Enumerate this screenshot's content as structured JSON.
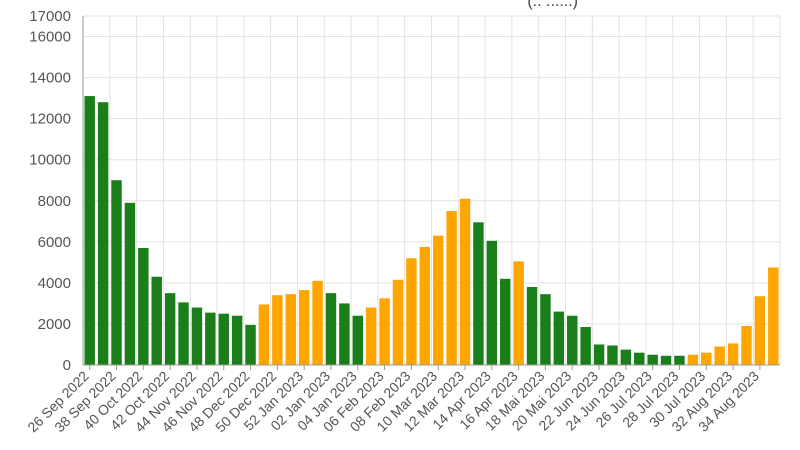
{
  "chart_data": {
    "type": "bar",
    "title": "(.. ......)",
    "xlabel": "",
    "ylabel": "",
    "ylim": [
      0,
      17000
    ],
    "y_ticks": [
      0,
      2000,
      4000,
      6000,
      8000,
      10000,
      12000,
      14000,
      16000,
      17000
    ],
    "grid": true,
    "legend": "none",
    "colors": {
      "decreasing": "#1a7f1a",
      "increasing": "#ffa500",
      "grid": "#e3e3e3",
      "axis": "#999999"
    },
    "categories": [
      "26 Sep 2022",
      "",
      "38 Sep 2022",
      "",
      "40 Oct 2022",
      "",
      "42 Oct 2022",
      "",
      "44 Nov 2022",
      "",
      "46 Nov 2022",
      "",
      "48 Dec 2022",
      "",
      "50 Dec 2022",
      "",
      "52 Jan 2023",
      "",
      "02 Jan 2023",
      "",
      "04 Jan 2023",
      "",
      "06 Feb 2023",
      "",
      "08 Feb 2023",
      "",
      "10 Mar 2023",
      "",
      "12 Mar 2023",
      "",
      "14 Apr 2023",
      "",
      "16 Apr 2023",
      "",
      "18 Mai 2023",
      "",
      "20 Mai 2023",
      "",
      "22 Jun 2023",
      "",
      "24 Jun 2023",
      "",
      "26 Jul 2023",
      "",
      "28 Jul 2023",
      "",
      "30 Jul 2023",
      "",
      "32 Aug 2023",
      "",
      "34 Aug 2023",
      ""
    ],
    "series": [
      {
        "values": [
          13100,
          12800,
          9000,
          7900,
          5700,
          4300,
          3500,
          3050,
          2800,
          2550,
          2500,
          2400,
          1950,
          2950,
          3400,
          3450,
          3650,
          4100,
          3500,
          3000,
          2400,
          2800,
          3250,
          4150,
          5200,
          5750,
          6300,
          7500,
          8100,
          6950,
          6050,
          4200,
          5050,
          3800,
          3450,
          2600,
          2400,
          1850,
          1000,
          950,
          750,
          600,
          500,
          450,
          450,
          500,
          600,
          900,
          1050,
          1900,
          3350,
          4750
        ],
        "trend": [
          "down",
          "down",
          "down",
          "down",
          "down",
          "down",
          "down",
          "down",
          "down",
          "down",
          "down",
          "down",
          "down",
          "up",
          "up",
          "up",
          "up",
          "up",
          "down",
          "down",
          "down",
          "up",
          "up",
          "up",
          "up",
          "up",
          "up",
          "up",
          "up",
          "down",
          "down",
          "down",
          "up",
          "down",
          "down",
          "down",
          "down",
          "down",
          "down",
          "down",
          "down",
          "down",
          "down",
          "down",
          "down",
          "up",
          "up",
          "up",
          "up",
          "up",
          "up",
          "up"
        ]
      }
    ]
  }
}
